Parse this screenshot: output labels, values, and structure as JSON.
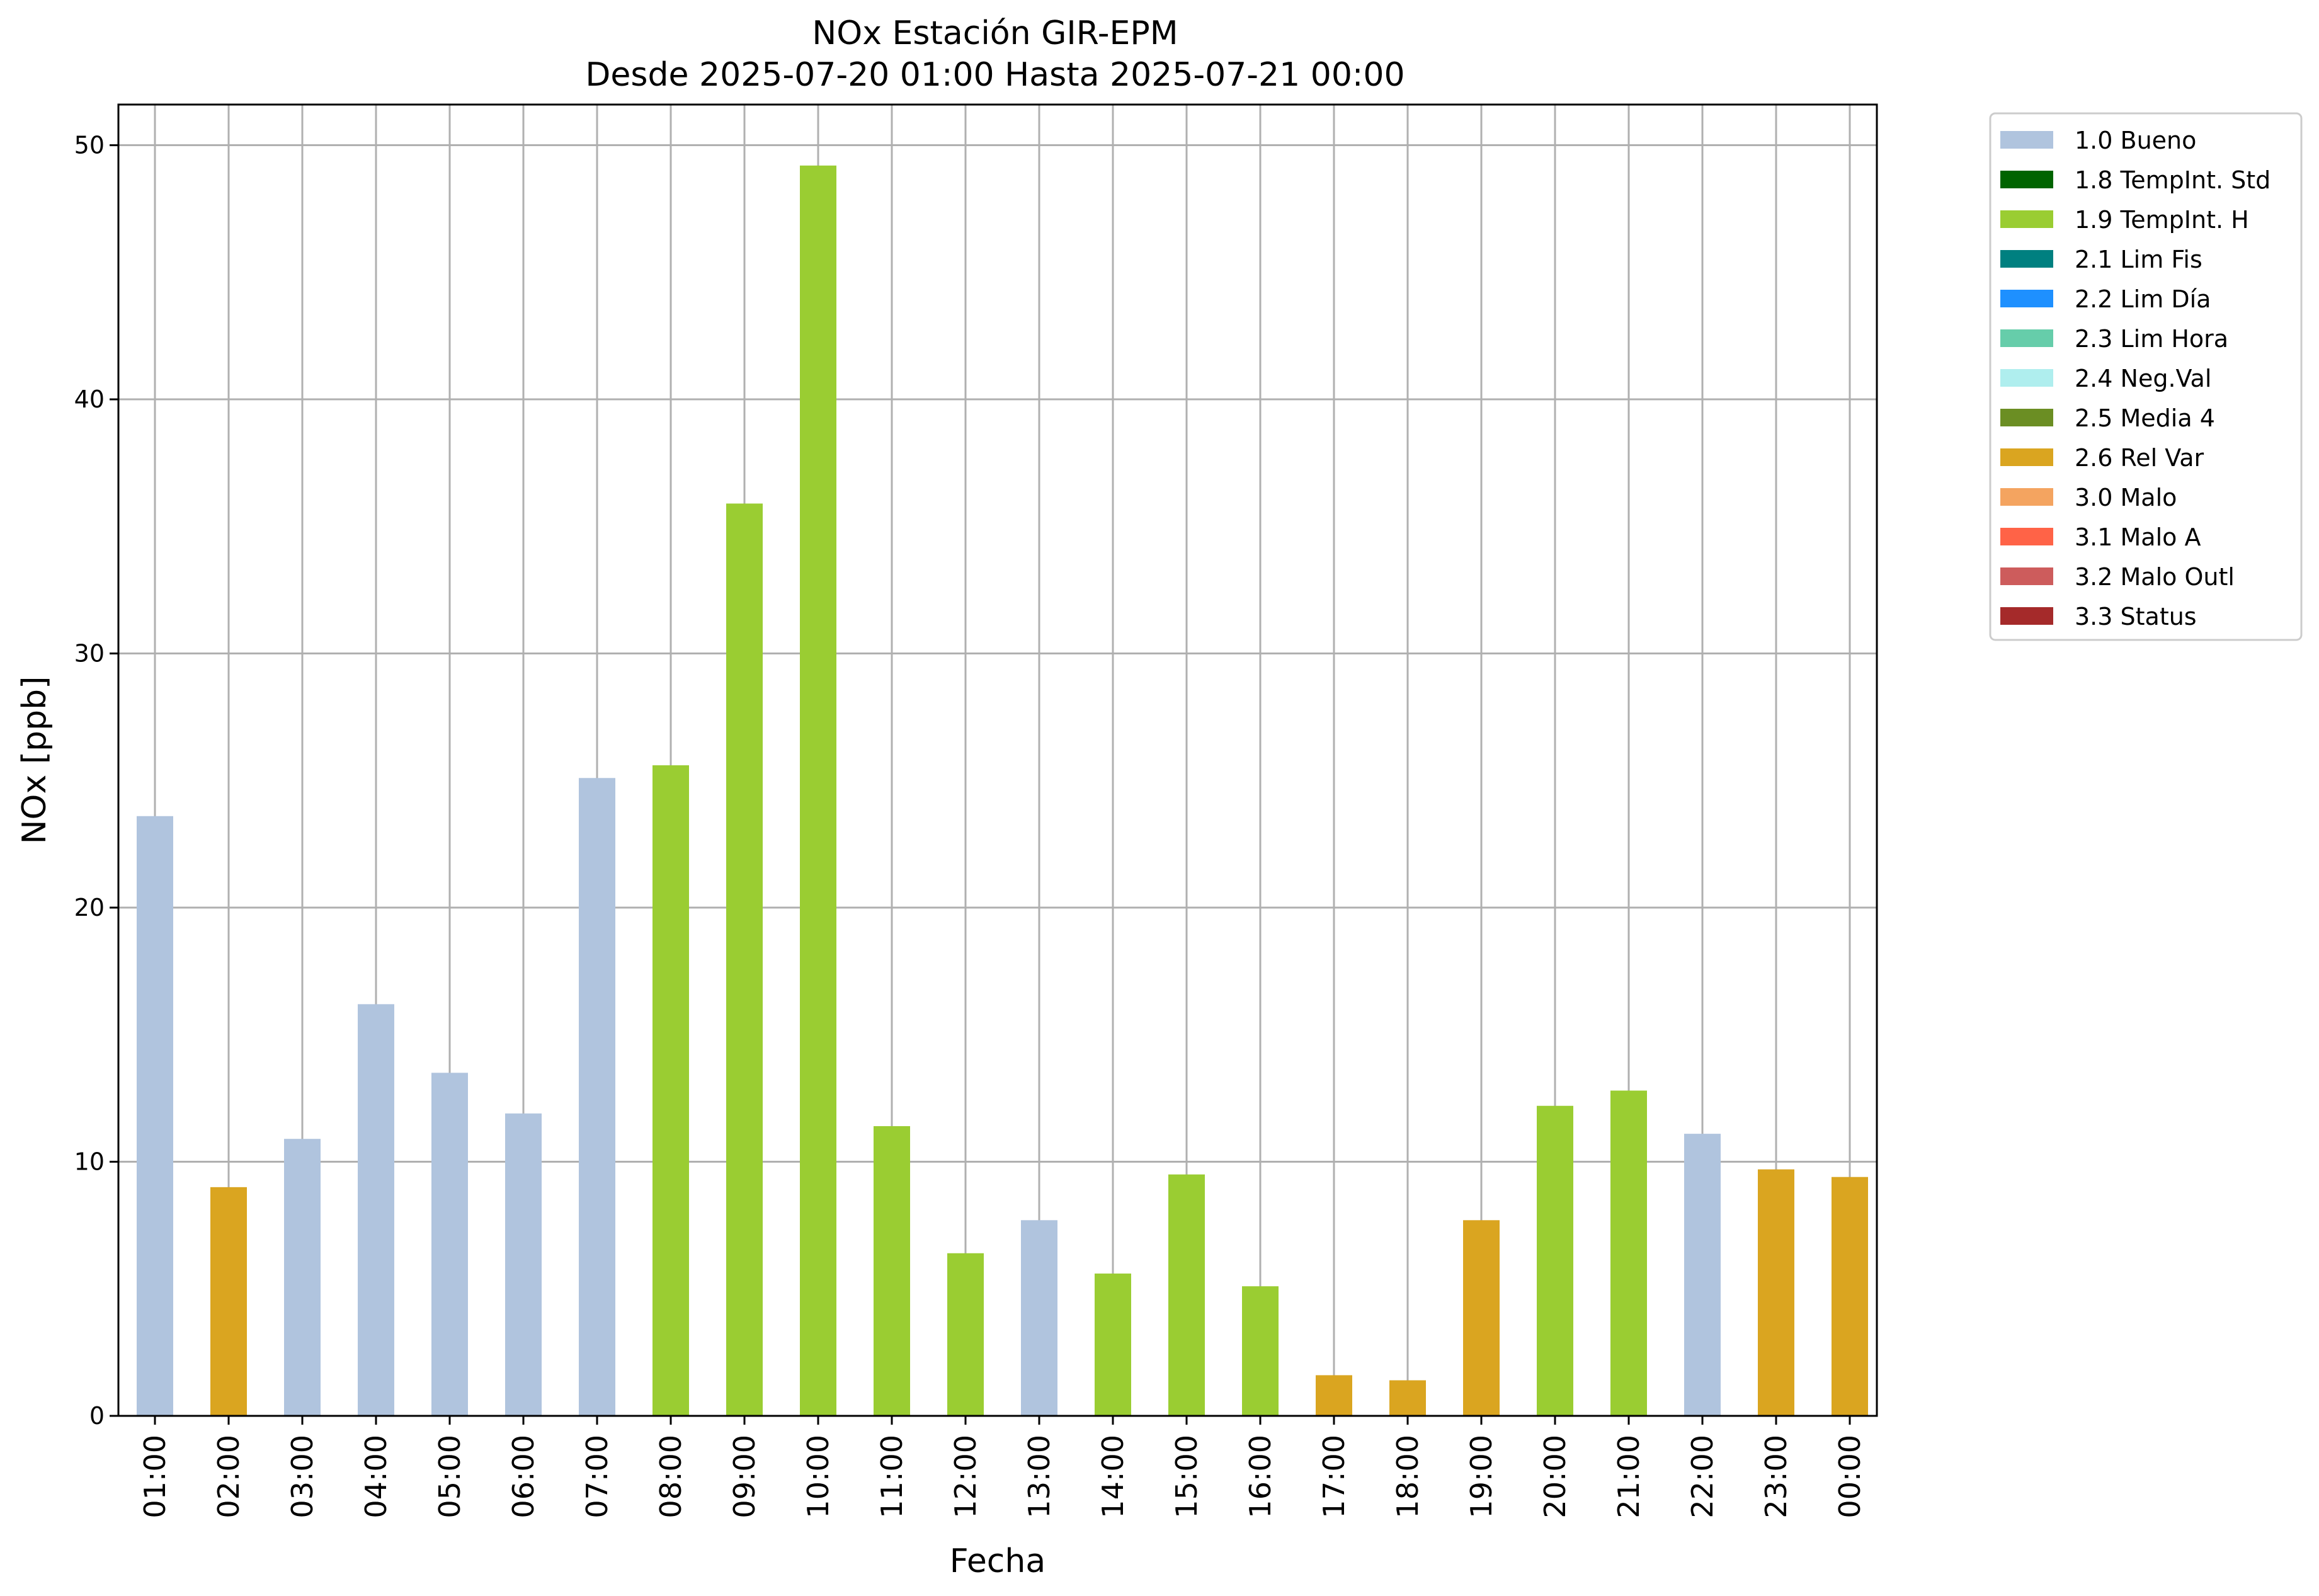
{
  "chart_data": {
    "type": "bar",
    "title": "NOx Estación GIR-EPM",
    "subtitle": "Desde 2025-07-20 01:00 Hasta 2025-07-21 00:00",
    "xlabel": "Fecha",
    "ylabel": "NOx [ppb]",
    "ylim": [
      0,
      51.6
    ],
    "yticks": [
      "0",
      "10",
      "20",
      "30",
      "40",
      "50"
    ],
    "grid": true,
    "legend_position": "outside-top-right",
    "categories": [
      "01:00",
      "02:00",
      "03:00",
      "04:00",
      "05:00",
      "06:00",
      "07:00",
      "08:00",
      "09:00",
      "10:00",
      "11:00",
      "12:00",
      "13:00",
      "14:00",
      "15:00",
      "16:00",
      "17:00",
      "18:00",
      "19:00",
      "20:00",
      "21:00",
      "22:00",
      "23:00",
      "00:00"
    ],
    "values": [
      23.6,
      9.0,
      10.9,
      16.2,
      13.5,
      11.9,
      25.1,
      25.6,
      35.9,
      49.2,
      11.4,
      6.4,
      7.7,
      5.6,
      9.5,
      5.1,
      1.6,
      1.4,
      7.7,
      12.2,
      12.8,
      11.1,
      9.7,
      9.4
    ],
    "status": [
      "1.0 Bueno",
      "2.6 Rel Var",
      "1.0 Bueno",
      "1.0 Bueno",
      "1.0 Bueno",
      "1.0 Bueno",
      "1.0 Bueno",
      "1.9 TempInt. H",
      "1.9 TempInt. H",
      "1.9 TempInt. H",
      "1.9 TempInt. H",
      "1.9 TempInt. H",
      "1.0 Bueno",
      "1.9 TempInt. H",
      "1.9 TempInt. H",
      "1.9 TempInt. H",
      "2.6 Rel Var",
      "2.6 Rel Var",
      "2.6 Rel Var",
      "1.9 TempInt. H",
      "1.9 TempInt. H",
      "1.0 Bueno",
      "2.6 Rel Var",
      "2.6 Rel Var"
    ],
    "legend": [
      {
        "label": "1.0 Bueno",
        "color": "#b0c4de"
      },
      {
        "label": "1.8 TempInt. Std",
        "color": "#006400"
      },
      {
        "label": "1.9 TempInt. H",
        "color": "#9acd32"
      },
      {
        "label": "2.1 Lim Fis",
        "color": "#008080"
      },
      {
        "label": "2.2 Lim Día",
        "color": "#1e90ff"
      },
      {
        "label": "2.3 Lim Hora",
        "color": "#66cdaa"
      },
      {
        "label": "2.4 Neg.Val",
        "color": "#afeeee"
      },
      {
        "label": "2.5 Media 4",
        "color": "#6b8e23"
      },
      {
        "label": "2.6 Rel Var",
        "color": "#daa520"
      },
      {
        "label": "3.0 Malo",
        "color": "#f4a460"
      },
      {
        "label": "3.1 Malo A",
        "color": "#ff6347"
      },
      {
        "label": "3.2 Malo Outl",
        "color": "#cd5c5c"
      },
      {
        "label": "3.3 Status",
        "color": "#a52a2a"
      }
    ]
  }
}
